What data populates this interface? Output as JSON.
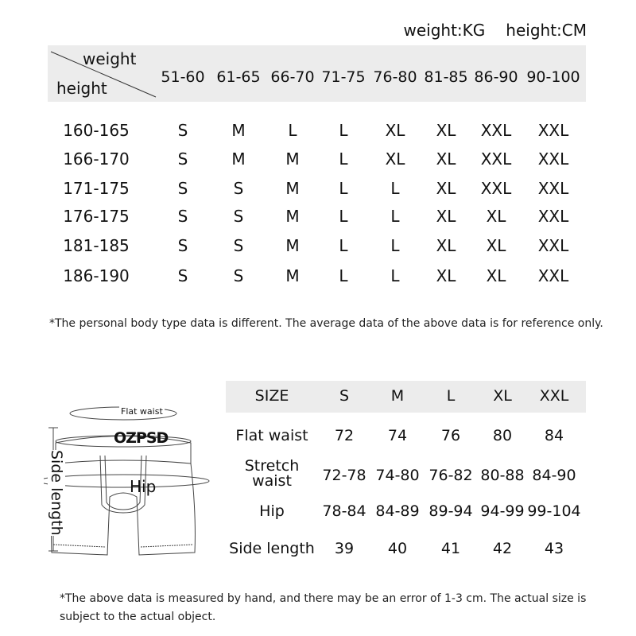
{
  "units": {
    "weight": "weight:KG",
    "height": "height:CM"
  },
  "table1": {
    "corner_top": "weight",
    "corner_bottom": "height",
    "columns": [
      "51-60",
      "61-65",
      "66-70",
      "71-75",
      "76-80",
      "81-85",
      "86-90",
      "90-100"
    ],
    "rows": [
      {
        "height": "160-165",
        "sizes": [
          "S",
          "M",
          "L",
          "L",
          "XL",
          "XL",
          "XXL",
          "XXL"
        ]
      },
      {
        "height": "166-170",
        "sizes": [
          "S",
          "M",
          "M",
          "L",
          "XL",
          "XL",
          "XXL",
          "XXL"
        ]
      },
      {
        "height": "171-175",
        "sizes": [
          "S",
          "S",
          "M",
          "L",
          "L",
          "XL",
          "XXL",
          "XXL"
        ]
      },
      {
        "height": "176-175",
        "sizes": [
          "S",
          "S",
          "M",
          "L",
          "L",
          "XL",
          "XL",
          "XXL"
        ]
      },
      {
        "height": "181-185",
        "sizes": [
          "S",
          "S",
          "M",
          "L",
          "L",
          "XL",
          "XL",
          "XXL"
        ]
      },
      {
        "height": "186-190",
        "sizes": [
          "S",
          "S",
          "M",
          "L",
          "L",
          "XL",
          "XL",
          "XXL"
        ]
      }
    ],
    "note": "*The personal body type data is different. The average data of the above data is for reference only."
  },
  "diagram": {
    "logo": "OZPSD",
    "flat_waist": "Flat waist",
    "hip": "Hip",
    "side_length": "Side length"
  },
  "table2": {
    "header": [
      "SIZE",
      "S",
      "M",
      "L",
      "XL",
      "XXL"
    ],
    "rows": [
      {
        "label": "Flat waist",
        "values": [
          "72",
          "74",
          "76",
          "80",
          "84"
        ]
      },
      {
        "label": "Stretch waist",
        "values": [
          "72-78",
          "74-80",
          "76-82",
          "80-88",
          "84-90"
        ]
      },
      {
        "label": "Hip",
        "values": [
          "78-84",
          "84-89",
          "89-94",
          "94-99",
          "99-104"
        ]
      },
      {
        "label": "Side length",
        "values": [
          "39",
          "40",
          "41",
          "42",
          "43"
        ]
      }
    ],
    "note": "*The above data is measured by hand, and there may be an error of 1-3 cm. The actual size is subject to the actual object."
  }
}
